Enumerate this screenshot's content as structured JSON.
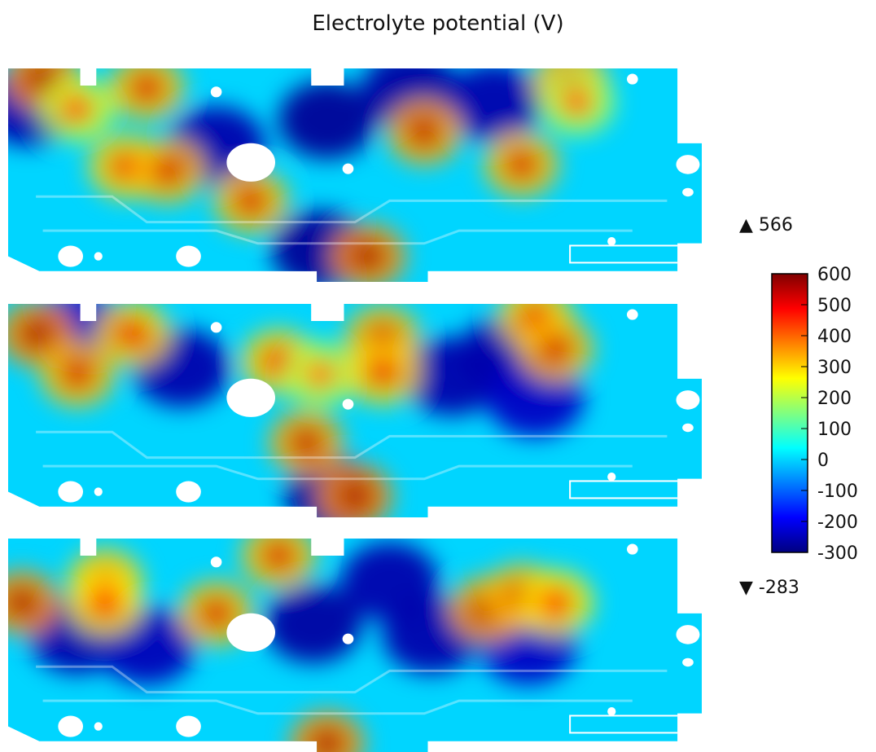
{
  "title": "Electrolyte potential (V)",
  "chart_data": {
    "type": "heatmap",
    "title": "Electrolyte potential (V)",
    "unit": "V",
    "colorbar": {
      "ticks": [
        "600",
        "500",
        "400",
        "300",
        "200",
        "100",
        "0",
        "-100",
        "-200",
        "-300"
      ],
      "range": [
        -300,
        600
      ],
      "max_label": "▲ 566",
      "min_label": "▼ -283",
      "max": 566,
      "min": -283,
      "colormap": [
        "#000080",
        "#0000ff",
        "#0080ff",
        "#00ffff",
        "#80ff80",
        "#ffff00",
        "#ff8000",
        "#ff0000",
        "#800000"
      ]
    },
    "panels": [
      {
        "name": "panel-1",
        "hotspots": [
          {
            "u": 0.05,
            "v": 0.04,
            "value": 560
          },
          {
            "u": 0.2,
            "v": 0.09,
            "value": 520
          },
          {
            "u": 0.17,
            "v": 0.46,
            "value": 500
          },
          {
            "u": 0.23,
            "v": 0.48,
            "value": 520
          },
          {
            "u": 0.35,
            "v": 0.62,
            "value": 520
          },
          {
            "u": 0.1,
            "v": 0.19,
            "value": 420
          },
          {
            "u": 0.52,
            "v": 0.88,
            "value": 560
          },
          {
            "u": 0.6,
            "v": 0.3,
            "value": 540
          },
          {
            "u": 0.74,
            "v": 0.45,
            "value": 520
          },
          {
            "u": 0.81,
            "v": 0.06,
            "value": 520
          },
          {
            "u": 0.82,
            "v": 0.16,
            "value": 400
          }
        ],
        "coldspots": [
          {
            "u": 0.46,
            "v": 0.24,
            "value": -280
          },
          {
            "u": 0.58,
            "v": 0.1,
            "value": -270
          },
          {
            "u": 0.7,
            "v": 0.16,
            "value": -260
          },
          {
            "u": 0.45,
            "v": 0.85,
            "value": -280
          },
          {
            "u": 0.03,
            "v": 0.18,
            "value": -260
          },
          {
            "u": 0.3,
            "v": 0.36,
            "value": -260
          }
        ]
      },
      {
        "name": "panel-2",
        "hotspots": [
          {
            "u": 0.04,
            "v": 0.14,
            "value": 560
          },
          {
            "u": 0.1,
            "v": 0.33,
            "value": 520
          },
          {
            "u": 0.18,
            "v": 0.14,
            "value": 500
          },
          {
            "u": 0.39,
            "v": 0.27,
            "value": 500
          },
          {
            "u": 0.45,
            "v": 0.33,
            "value": 380
          },
          {
            "u": 0.54,
            "v": 0.16,
            "value": 520
          },
          {
            "u": 0.54,
            "v": 0.32,
            "value": 500
          },
          {
            "u": 0.43,
            "v": 0.65,
            "value": 540
          },
          {
            "u": 0.5,
            "v": 0.9,
            "value": 560
          },
          {
            "u": 0.76,
            "v": 0.06,
            "value": 500
          },
          {
            "u": 0.79,
            "v": 0.21,
            "value": 520
          }
        ],
        "coldspots": [
          {
            "u": 0.25,
            "v": 0.3,
            "value": -260
          },
          {
            "u": 0.64,
            "v": 0.34,
            "value": -260
          },
          {
            "u": 0.72,
            "v": 0.24,
            "value": -260
          },
          {
            "u": 0.47,
            "v": 0.9,
            "value": -280
          },
          {
            "u": 0.1,
            "v": 0.12,
            "value": -240
          },
          {
            "u": 0.76,
            "v": 0.44,
            "value": -240
          }
        ]
      },
      {
        "name": "panel-3",
        "hotspots": [
          {
            "u": 0.02,
            "v": 0.3,
            "value": 560
          },
          {
            "u": 0.14,
            "v": 0.2,
            "value": 500
          },
          {
            "u": 0.14,
            "v": 0.3,
            "value": 480
          },
          {
            "u": 0.3,
            "v": 0.35,
            "value": 520
          },
          {
            "u": 0.39,
            "v": 0.08,
            "value": 520
          },
          {
            "u": 0.46,
            "v": 0.96,
            "value": 560
          },
          {
            "u": 0.69,
            "v": 0.33,
            "value": 540
          },
          {
            "u": 0.74,
            "v": 0.27,
            "value": 520
          },
          {
            "u": 0.79,
            "v": 0.3,
            "value": 480
          }
        ],
        "coldspots": [
          {
            "u": 0.1,
            "v": 0.45,
            "value": -260
          },
          {
            "u": 0.44,
            "v": 0.4,
            "value": -270
          },
          {
            "u": 0.55,
            "v": 0.2,
            "value": -260
          },
          {
            "u": 0.61,
            "v": 0.45,
            "value": -260
          },
          {
            "u": 0.2,
            "v": 0.5,
            "value": -250
          },
          {
            "u": 0.75,
            "v": 0.5,
            "value": -240
          }
        ]
      }
    ]
  }
}
